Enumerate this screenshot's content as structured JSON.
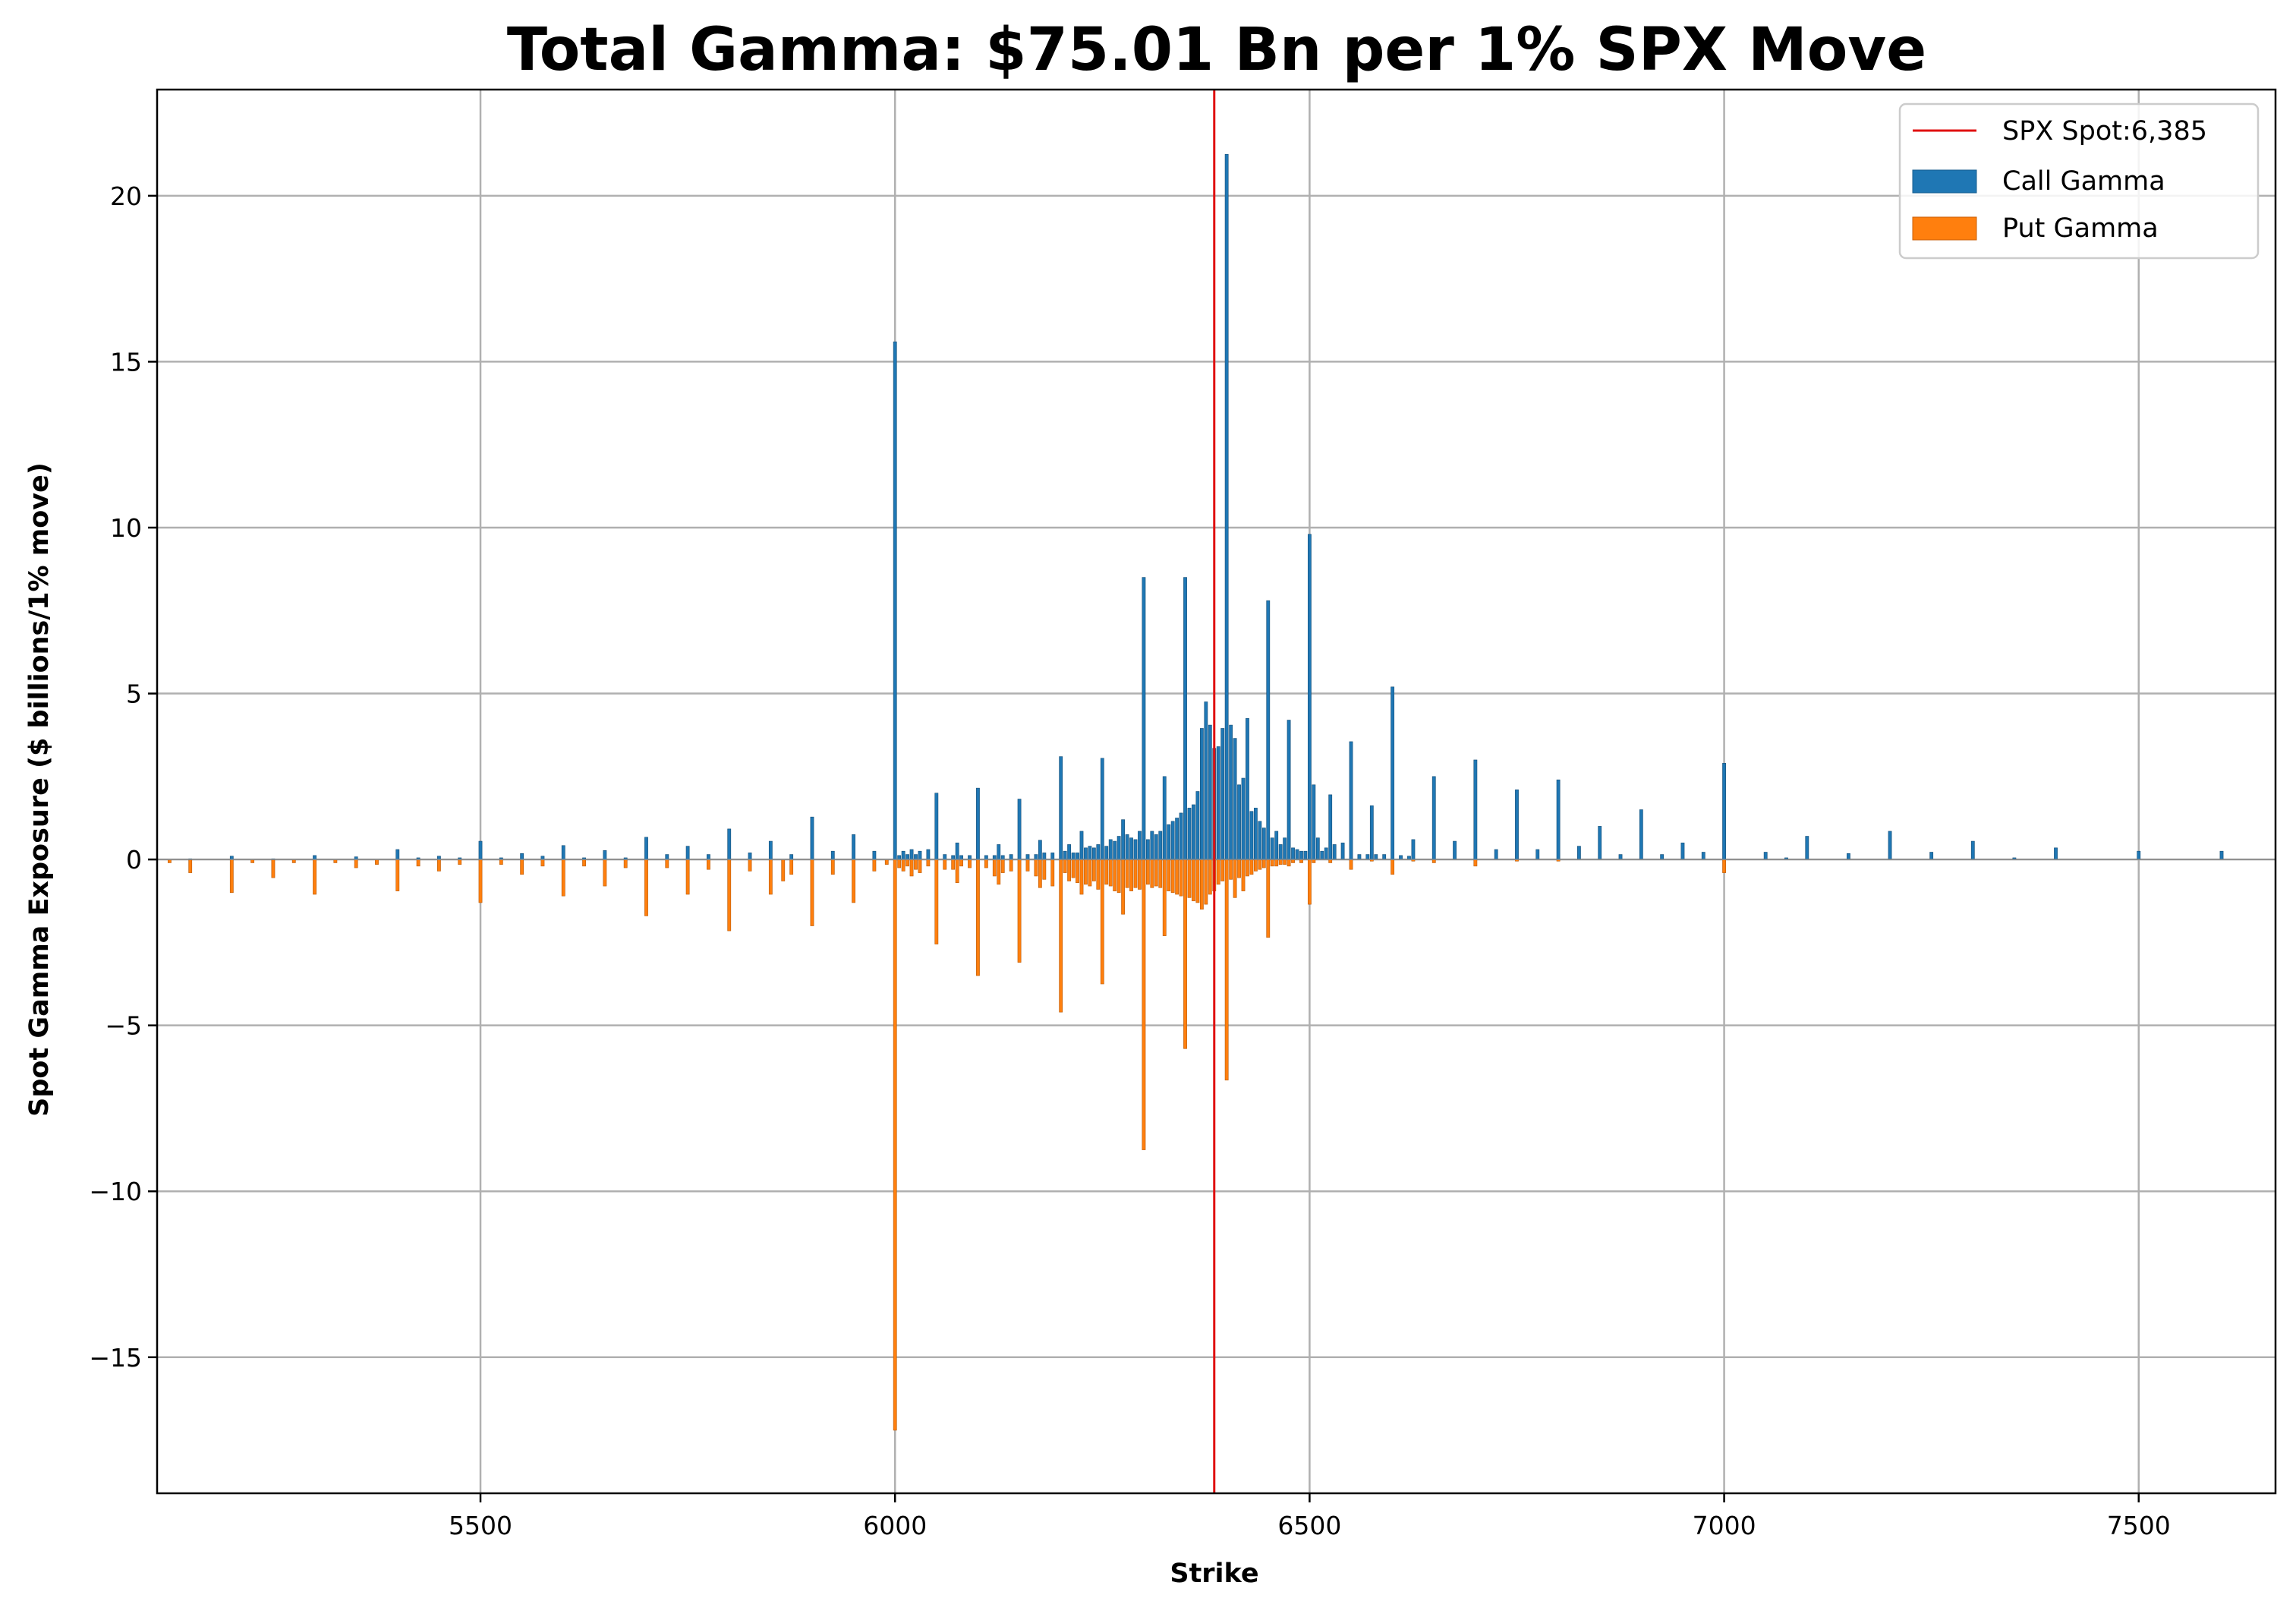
{
  "chart_data": {
    "type": "bar",
    "title": "Total Gamma: $75.01 Bn per 1% SPX Move",
    "xlabel": "Strike",
    "ylabel": "Spot Gamma Exposure ($ billions/1% move)",
    "xlim": [
      5110,
      7665
    ],
    "ylim": [
      -19.1,
      23.2
    ],
    "xticks": [
      5500,
      6000,
      6500,
      7000,
      7500
    ],
    "yticks": [
      -15,
      -10,
      -5,
      0,
      5,
      10,
      15,
      20
    ],
    "xtick_labels": [
      "5500",
      "6000",
      "6500",
      "7000",
      "7500"
    ],
    "ytick_labels": [
      "−15",
      "−10",
      "−5",
      "0",
      "5",
      "10",
      "15",
      "20"
    ],
    "grid": true,
    "legend_position": "top-right",
    "spot": {
      "name": "SPX Spot:6,385",
      "value": 6385,
      "color": "#e01010"
    },
    "call_series": {
      "name": "Call Gamma",
      "color": "#1f77b4",
      "points": [
        [
          5150,
          0.02
        ],
        [
          5200,
          0.1
        ],
        [
          5250,
          0.02
        ],
        [
          5300,
          0.12
        ],
        [
          5350,
          0.08
        ],
        [
          5400,
          0.3
        ],
        [
          5425,
          0.05
        ],
        [
          5450,
          0.1
        ],
        [
          5475,
          0.05
        ],
        [
          5500,
          0.55
        ],
        [
          5525,
          0.05
        ],
        [
          5550,
          0.18
        ],
        [
          5575,
          0.1
        ],
        [
          5600,
          0.42
        ],
        [
          5625,
          0.05
        ],
        [
          5650,
          0.27
        ],
        [
          5675,
          0.05
        ],
        [
          5700,
          0.67
        ],
        [
          5725,
          0.15
        ],
        [
          5750,
          0.4
        ],
        [
          5775,
          0.15
        ],
        [
          5800,
          0.92
        ],
        [
          5825,
          0.2
        ],
        [
          5850,
          0.55
        ],
        [
          5875,
          0.15
        ],
        [
          5900,
          1.28
        ],
        [
          5925,
          0.25
        ],
        [
          5950,
          0.75
        ],
        [
          5975,
          0.25
        ],
        [
          6000,
          15.6
        ],
        [
          6005,
          0.12
        ],
        [
          6010,
          0.25
        ],
        [
          6015,
          0.15
        ],
        [
          6020,
          0.3
        ],
        [
          6025,
          0.15
        ],
        [
          6030,
          0.25
        ],
        [
          6040,
          0.3
        ],
        [
          6050,
          2.0
        ],
        [
          6060,
          0.15
        ],
        [
          6070,
          0.12
        ],
        [
          6075,
          0.5
        ],
        [
          6080,
          0.12
        ],
        [
          6090,
          0.12
        ],
        [
          6100,
          2.15
        ],
        [
          6110,
          0.12
        ],
        [
          6120,
          0.12
        ],
        [
          6125,
          0.45
        ],
        [
          6130,
          0.12
        ],
        [
          6140,
          0.15
        ],
        [
          6150,
          1.82
        ],
        [
          6160,
          0.15
        ],
        [
          6170,
          0.15
        ],
        [
          6175,
          0.58
        ],
        [
          6180,
          0.2
        ],
        [
          6190,
          0.2
        ],
        [
          6200,
          3.1
        ],
        [
          6205,
          0.25
        ],
        [
          6210,
          0.45
        ],
        [
          6215,
          0.2
        ],
        [
          6220,
          0.2
        ],
        [
          6225,
          0.85
        ],
        [
          6230,
          0.35
        ],
        [
          6235,
          0.4
        ],
        [
          6240,
          0.35
        ],
        [
          6245,
          0.45
        ],
        [
          6250,
          3.05
        ],
        [
          6255,
          0.4
        ],
        [
          6260,
          0.6
        ],
        [
          6265,
          0.55
        ],
        [
          6270,
          0.7
        ],
        [
          6275,
          1.2
        ],
        [
          6280,
          0.75
        ],
        [
          6285,
          0.65
        ],
        [
          6290,
          0.6
        ],
        [
          6295,
          0.85
        ],
        [
          6300,
          8.5
        ],
        [
          6305,
          0.6
        ],
        [
          6310,
          0.85
        ],
        [
          6315,
          0.75
        ],
        [
          6320,
          0.85
        ],
        [
          6325,
          2.5
        ],
        [
          6330,
          1.05
        ],
        [
          6335,
          1.15
        ],
        [
          6340,
          1.25
        ],
        [
          6345,
          1.4
        ],
        [
          6350,
          8.5
        ],
        [
          6355,
          1.55
        ],
        [
          6360,
          1.65
        ],
        [
          6365,
          2.05
        ],
        [
          6370,
          3.95
        ],
        [
          6375,
          4.75
        ],
        [
          6380,
          4.05
        ],
        [
          6385,
          3.35
        ],
        [
          6390,
          3.4
        ],
        [
          6395,
          3.95
        ],
        [
          6400,
          21.25
        ],
        [
          6405,
          4.05
        ],
        [
          6410,
          3.65
        ],
        [
          6415,
          2.25
        ],
        [
          6420,
          2.45
        ],
        [
          6425,
          4.25
        ],
        [
          6430,
          1.45
        ],
        [
          6435,
          1.55
        ],
        [
          6440,
          1.15
        ],
        [
          6445,
          0.95
        ],
        [
          6450,
          7.8
        ],
        [
          6455,
          0.65
        ],
        [
          6460,
          0.85
        ],
        [
          6465,
          0.45
        ],
        [
          6470,
          0.65
        ],
        [
          6475,
          4.2
        ],
        [
          6480,
          0.35
        ],
        [
          6485,
          0.3
        ],
        [
          6490,
          0.25
        ],
        [
          6495,
          0.25
        ],
        [
          6500,
          9.8
        ],
        [
          6505,
          2.25
        ],
        [
          6510,
          0.65
        ],
        [
          6515,
          0.25
        ],
        [
          6520,
          0.35
        ],
        [
          6525,
          1.95
        ],
        [
          6530,
          0.45
        ],
        [
          6540,
          0.5
        ],
        [
          6550,
          3.55
        ],
        [
          6560,
          0.15
        ],
        [
          6570,
          0.15
        ],
        [
          6575,
          1.62
        ],
        [
          6580,
          0.15
        ],
        [
          6590,
          0.15
        ],
        [
          6600,
          5.2
        ],
        [
          6610,
          0.12
        ],
        [
          6620,
          0.1
        ],
        [
          6625,
          0.6
        ],
        [
          6650,
          2.5
        ],
        [
          6675,
          0.55
        ],
        [
          6700,
          3.0
        ],
        [
          6725,
          0.3
        ],
        [
          6750,
          2.1
        ],
        [
          6775,
          0.3
        ],
        [
          6800,
          2.4
        ],
        [
          6825,
          0.4
        ],
        [
          6850,
          1.0
        ],
        [
          6875,
          0.15
        ],
        [
          6900,
          1.5
        ],
        [
          6925,
          0.15
        ],
        [
          6950,
          0.5
        ],
        [
          6975,
          0.22
        ],
        [
          7000,
          2.9
        ],
        [
          7050,
          0.22
        ],
        [
          7075,
          0.05
        ],
        [
          7100,
          0.7
        ],
        [
          7150,
          0.18
        ],
        [
          7200,
          0.85
        ],
        [
          7250,
          0.22
        ],
        [
          7300,
          0.55
        ],
        [
          7350,
          0.05
        ],
        [
          7400,
          0.35
        ],
        [
          7500,
          0.25
        ],
        [
          7600,
          0.25
        ]
      ]
    },
    "put_series": {
      "name": "Put Gamma",
      "color": "#ff7f0e",
      "points": [
        [
          5125,
          -0.1
        ],
        [
          5150,
          -0.4
        ],
        [
          5200,
          -1.0
        ],
        [
          5225,
          -0.1
        ],
        [
          5250,
          -0.55
        ],
        [
          5275,
          -0.1
        ],
        [
          5300,
          -1.05
        ],
        [
          5325,
          -0.1
        ],
        [
          5350,
          -0.25
        ],
        [
          5375,
          -0.15
        ],
        [
          5400,
          -0.95
        ],
        [
          5425,
          -0.2
        ],
        [
          5450,
          -0.35
        ],
        [
          5475,
          -0.15
        ],
        [
          5500,
          -1.3
        ],
        [
          5525,
          -0.15
        ],
        [
          5550,
          -0.45
        ],
        [
          5575,
          -0.2
        ],
        [
          5600,
          -1.1
        ],
        [
          5625,
          -0.2
        ],
        [
          5650,
          -0.8
        ],
        [
          5675,
          -0.25
        ],
        [
          5700,
          -1.7
        ],
        [
          5725,
          -0.25
        ],
        [
          5750,
          -1.05
        ],
        [
          5775,
          -0.3
        ],
        [
          5800,
          -2.15
        ],
        [
          5825,
          -0.35
        ],
        [
          5850,
          -1.05
        ],
        [
          5865,
          -0.65
        ],
        [
          5875,
          -0.45
        ],
        [
          5900,
          -2.0
        ],
        [
          5925,
          -0.45
        ],
        [
          5950,
          -1.3
        ],
        [
          5975,
          -0.35
        ],
        [
          5990,
          -0.15
        ],
        [
          6000,
          -17.2
        ],
        [
          6005,
          -0.25
        ],
        [
          6010,
          -0.35
        ],
        [
          6015,
          -0.2
        ],
        [
          6020,
          -0.5
        ],
        [
          6025,
          -0.3
        ],
        [
          6030,
          -0.4
        ],
        [
          6040,
          -0.2
        ],
        [
          6050,
          -2.55
        ],
        [
          6060,
          -0.3
        ],
        [
          6070,
          -0.3
        ],
        [
          6075,
          -0.7
        ],
        [
          6080,
          -0.2
        ],
        [
          6090,
          -0.25
        ],
        [
          6100,
          -3.5
        ],
        [
          6110,
          -0.25
        ],
        [
          6120,
          -0.5
        ],
        [
          6125,
          -0.75
        ],
        [
          6130,
          -0.4
        ],
        [
          6140,
          -0.35
        ],
        [
          6150,
          -3.1
        ],
        [
          6160,
          -0.35
        ],
        [
          6170,
          -0.5
        ],
        [
          6175,
          -0.85
        ],
        [
          6180,
          -0.6
        ],
        [
          6190,
          -0.8
        ],
        [
          6200,
          -4.6
        ],
        [
          6205,
          -0.4
        ],
        [
          6210,
          -0.65
        ],
        [
          6215,
          -0.55
        ],
        [
          6220,
          -0.7
        ],
        [
          6225,
          -1.05
        ],
        [
          6230,
          -0.75
        ],
        [
          6235,
          -0.8
        ],
        [
          6240,
          -0.65
        ],
        [
          6245,
          -0.9
        ],
        [
          6250,
          -3.75
        ],
        [
          6255,
          -0.75
        ],
        [
          6260,
          -0.8
        ],
        [
          6265,
          -0.95
        ],
        [
          6270,
          -1.0
        ],
        [
          6275,
          -1.65
        ],
        [
          6280,
          -0.85
        ],
        [
          6285,
          -0.95
        ],
        [
          6290,
          -0.85
        ],
        [
          6295,
          -0.9
        ],
        [
          6300,
          -8.75
        ],
        [
          6305,
          -0.75
        ],
        [
          6310,
          -0.85
        ],
        [
          6315,
          -0.8
        ],
        [
          6320,
          -0.85
        ],
        [
          6325,
          -2.3
        ],
        [
          6330,
          -0.95
        ],
        [
          6335,
          -1.0
        ],
        [
          6340,
          -1.05
        ],
        [
          6345,
          -1.1
        ],
        [
          6350,
          -5.7
        ],
        [
          6355,
          -1.15
        ],
        [
          6360,
          -1.25
        ],
        [
          6365,
          -1.3
        ],
        [
          6370,
          -1.5
        ],
        [
          6375,
          -1.35
        ],
        [
          6380,
          -1.05
        ],
        [
          6385,
          -0.95
        ],
        [
          6390,
          -0.75
        ],
        [
          6395,
          -0.65
        ],
        [
          6400,
          -6.65
        ],
        [
          6405,
          -0.6
        ],
        [
          6410,
          -1.15
        ],
        [
          6415,
          -0.55
        ],
        [
          6420,
          -0.95
        ],
        [
          6425,
          -0.5
        ],
        [
          6430,
          -0.45
        ],
        [
          6435,
          -0.35
        ],
        [
          6440,
          -0.3
        ],
        [
          6445,
          -0.25
        ],
        [
          6450,
          -2.35
        ],
        [
          6455,
          -0.2
        ],
        [
          6460,
          -0.2
        ],
        [
          6465,
          -0.15
        ],
        [
          6470,
          -0.15
        ],
        [
          6475,
          -0.2
        ],
        [
          6480,
          -0.1
        ],
        [
          6490,
          -0.1
        ],
        [
          6500,
          -1.35
        ],
        [
          6505,
          -0.1
        ],
        [
          6525,
          -0.1
        ],
        [
          6550,
          -0.3
        ],
        [
          6575,
          -0.05
        ],
        [
          6600,
          -0.45
        ],
        [
          6625,
          -0.05
        ],
        [
          6650,
          -0.1
        ],
        [
          6700,
          -0.2
        ],
        [
          6750,
          -0.05
        ],
        [
          6800,
          -0.05
        ],
        [
          7000,
          -0.4
        ]
      ]
    }
  }
}
